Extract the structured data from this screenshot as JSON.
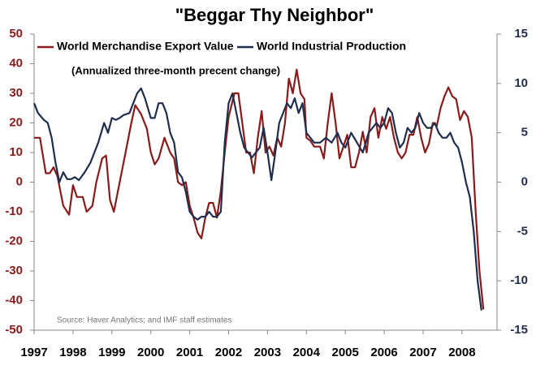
{
  "chart_data": {
    "type": "line",
    "title": "\"Beggar Thy Neighbor\"",
    "subtitle": "(Annualized three-month precent change)",
    "annotations": [
      "Source: Haver Analytics; and IMF staff estimates"
    ],
    "xlim": [
      1997,
      2008.9
    ],
    "xticks": [
      1997,
      1998,
      1999,
      2000,
      2001,
      2002,
      2003,
      2004,
      2005,
      2006,
      2007,
      2008
    ],
    "ylim": [
      -50,
      50
    ],
    "yticks": [
      -50,
      -40,
      -30,
      -20,
      -10,
      0,
      10,
      20,
      30,
      40,
      50
    ],
    "y2lim": [
      -15,
      15
    ],
    "y2ticks": [
      -15,
      -10,
      -5,
      0,
      5,
      10,
      15
    ],
    "grid": false,
    "legend": "top",
    "series": [
      {
        "name": "World Merchandise Export Value",
        "color": "#8b1a1a",
        "axis": "y",
        "x": [
          1997.0,
          1997.15,
          1997.3,
          1997.4,
          1997.5,
          1997.6,
          1997.75,
          1997.9,
          1998.0,
          1998.1,
          1998.25,
          1998.35,
          1998.5,
          1998.6,
          1998.75,
          1998.85,
          1998.95,
          1999.05,
          1999.2,
          1999.35,
          1999.5,
          1999.6,
          1999.75,
          1999.9,
          2000.0,
          2000.1,
          2000.2,
          2000.35,
          2000.5,
          2000.6,
          2000.7,
          2000.8,
          2000.9,
          2001.0,
          2001.1,
          2001.2,
          2001.3,
          2001.4,
          2001.5,
          2001.6,
          2001.7,
          2001.8,
          2001.9,
          2002.0,
          2002.15,
          2002.25,
          2002.35,
          2002.45,
          2002.55,
          2002.65,
          2002.75,
          2002.85,
          2002.95,
          2003.05,
          2003.15,
          2003.25,
          2003.35,
          2003.45,
          2003.55,
          2003.65,
          2003.75,
          2003.85,
          2003.95,
          2004.0,
          2004.1,
          2004.2,
          2004.35,
          2004.45,
          2004.55,
          2004.65,
          2004.75,
          2004.85,
          2004.95,
          2005.05,
          2005.15,
          2005.25,
          2005.35,
          2005.45,
          2005.55,
          2005.65,
          2005.75,
          2005.85,
          2005.95,
          2006.05,
          2006.15,
          2006.25,
          2006.35,
          2006.45,
          2006.55,
          2006.65,
          2006.75,
          2006.85,
          2006.95,
          2007.05,
          2007.15,
          2007.25,
          2007.35,
          2007.45,
          2007.55,
          2007.65,
          2007.75,
          2007.85,
          2007.95,
          2008.05,
          2008.15,
          2008.25,
          2008.35,
          2008.45,
          2008.55
        ],
        "values": [
          15,
          15,
          3,
          3,
          5,
          2,
          -8,
          -11,
          -1,
          -5,
          -5,
          -10,
          -8,
          0,
          8,
          9,
          -6,
          -10,
          0,
          10,
          20,
          26,
          23,
          18,
          10,
          6,
          8,
          15,
          10,
          8,
          0,
          -1,
          0,
          -8,
          -12,
          -17,
          -19,
          -12,
          -7,
          -7,
          -12,
          -3,
          10,
          22,
          30,
          30,
          20,
          10,
          10,
          3,
          15,
          24,
          10,
          12,
          9,
          15,
          12,
          20,
          35,
          30,
          38,
          30,
          28,
          15,
          14,
          12,
          12,
          8,
          20,
          30,
          20,
          8,
          12,
          16,
          5,
          5,
          10,
          17,
          10,
          22,
          25,
          15,
          22,
          18,
          22,
          15,
          10,
          8,
          10,
          16,
          16,
          22,
          15,
          10,
          13,
          20,
          19,
          25,
          29,
          32,
          29,
          28,
          21,
          24,
          22,
          15,
          -10,
          -30,
          -43
        ]
      },
      {
        "name": "World Industrial Production",
        "color": "#1f2d4e",
        "axis": "y2",
        "x": [
          1997.0,
          1997.1,
          1997.25,
          1997.35,
          1997.45,
          1997.55,
          1997.65,
          1997.75,
          1997.85,
          1997.95,
          1998.05,
          1998.15,
          1998.3,
          1998.45,
          1998.55,
          1998.65,
          1998.8,
          1998.9,
          1999.0,
          1999.1,
          1999.2,
          1999.3,
          1999.45,
          1999.55,
          1999.65,
          1999.75,
          1999.85,
          2000.0,
          2000.1,
          2000.2,
          2000.3,
          2000.4,
          2000.5,
          2000.6,
          2000.7,
          2000.8,
          2000.9,
          2001.0,
          2001.1,
          2001.2,
          2001.3,
          2001.4,
          2001.5,
          2001.6,
          2001.7,
          2001.8,
          2001.9,
          2002.0,
          2002.1,
          2002.2,
          2002.3,
          2002.4,
          2002.5,
          2002.6,
          2002.7,
          2002.8,
          2002.9,
          2003.0,
          2003.1,
          2003.2,
          2003.3,
          2003.4,
          2003.5,
          2003.6,
          2003.7,
          2003.8,
          2003.9,
          2004.0,
          2004.1,
          2004.2,
          2004.35,
          2004.5,
          2004.65,
          2004.8,
          2004.9,
          2005.0,
          2005.15,
          2005.3,
          2005.45,
          2005.6,
          2005.7,
          2005.8,
          2005.9,
          2006.0,
          2006.1,
          2006.2,
          2006.3,
          2006.4,
          2006.5,
          2006.6,
          2006.7,
          2006.8,
          2006.9,
          2007.0,
          2007.1,
          2007.2,
          2007.3,
          2007.4,
          2007.5,
          2007.6,
          2007.7,
          2007.8,
          2007.9,
          2008.0,
          2008.1,
          2008.2,
          2008.3,
          2008.4,
          2008.5
        ],
        "values": [
          8,
          7,
          6.3,
          6,
          4.5,
          2,
          0,
          1,
          0.3,
          0.3,
          0.5,
          0.2,
          1,
          2,
          3,
          4,
          6,
          5,
          6.5,
          6.3,
          6.5,
          6.8,
          7,
          8,
          9,
          9.5,
          8.5,
          6.5,
          6.5,
          8,
          8,
          7,
          5,
          4,
          1,
          0.5,
          -1,
          -3,
          -3.5,
          -3.8,
          -3.5,
          -3.5,
          -3,
          -3.5,
          -3.5,
          -3,
          4,
          8,
          9,
          7,
          5,
          3.5,
          3,
          2.5,
          3,
          3.5,
          5.5,
          3,
          0.2,
          3,
          6,
          7,
          8,
          7.5,
          8.5,
          7,
          8,
          5,
          4.5,
          4,
          4,
          4.5,
          4,
          5,
          4,
          3.5,
          5,
          4,
          3,
          5,
          5.5,
          6,
          5.5,
          6,
          7.5,
          7,
          5,
          3.5,
          4,
          5.5,
          5,
          5.5,
          7,
          6,
          5.5,
          5.5,
          6,
          5,
          4.5,
          4.5,
          5,
          4,
          3.5,
          2,
          0,
          -1.5,
          -5,
          -10,
          -13
        ]
      }
    ]
  }
}
